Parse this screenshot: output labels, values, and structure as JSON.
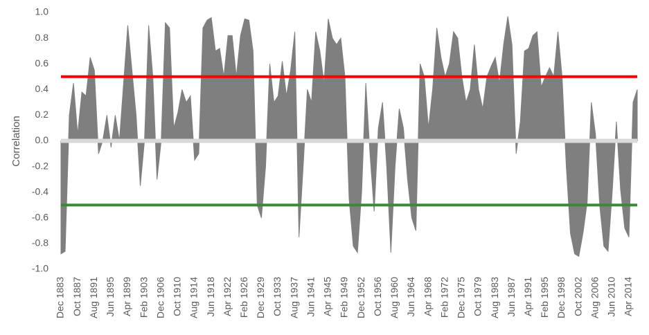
{
  "chart_data": {
    "type": "area",
    "y_label": "Correlation",
    "categories": [
      "Dec 1883",
      null,
      null,
      null,
      "Oct 1887",
      null,
      null,
      null,
      "Aug 1891",
      null,
      null,
      null,
      "Jun 1895",
      null,
      null,
      null,
      "Apr 1899",
      null,
      null,
      null,
      "Feb 1903",
      null,
      null,
      null,
      "Dec 1906",
      null,
      null,
      null,
      "Oct 1910",
      null,
      null,
      null,
      "Aug 1914",
      null,
      null,
      null,
      "Jun 1918",
      null,
      null,
      null,
      "Apr 1922",
      null,
      null,
      null,
      "Feb 1926",
      null,
      null,
      null,
      "Dec 1929",
      null,
      null,
      null,
      "Oct 1933",
      null,
      null,
      null,
      "Aug 1937",
      null,
      null,
      null,
      "Jun 1941",
      null,
      null,
      null,
      "Apr 1945",
      null,
      null,
      null,
      "Feb 1949",
      null,
      null,
      null,
      "Dec 1952",
      null,
      null,
      null,
      "Oct 1956",
      null,
      null,
      null,
      "Aug 1960",
      null,
      null,
      null,
      "Jun 1964",
      null,
      null,
      null,
      "Apr 1968",
      null,
      null,
      null,
      "Feb 1972",
      null,
      null,
      null,
      "Dec 1975",
      null,
      null,
      null,
      "Oct 1979",
      null,
      null,
      null,
      "Aug 1983",
      null,
      null,
      null,
      "Jun 1987",
      null,
      null,
      null,
      "Apr 1991",
      null,
      null,
      null,
      "Feb 1995",
      null,
      null,
      null,
      "Dec 1998",
      null,
      null,
      null,
      "Oct 2002",
      null,
      null,
      null,
      "Aug 2006",
      null,
      null,
      null,
      "Jun 2010",
      null,
      null,
      null,
      "Apr 2014",
      null,
      null
    ],
    "values": [
      -0.88,
      -0.86,
      0.2,
      0.45,
      0.05,
      0.38,
      0.35,
      0.65,
      0.55,
      -0.1,
      0.0,
      0.2,
      -0.05,
      0.2,
      0.0,
      0.45,
      0.9,
      0.55,
      0.2,
      -0.35,
      0.0,
      0.9,
      0.5,
      -0.3,
      0.0,
      0.92,
      0.88,
      0.1,
      0.22,
      0.4,
      0.3,
      0.35,
      -0.15,
      -0.1,
      0.88,
      0.94,
      0.96,
      0.7,
      0.72,
      0.5,
      0.82,
      0.82,
      0.5,
      0.82,
      0.95,
      0.94,
      0.7,
      -0.5,
      -0.6,
      -0.2,
      0.6,
      0.3,
      0.35,
      0.62,
      0.35,
      0.55,
      0.85,
      -0.75,
      -0.2,
      0.4,
      0.3,
      0.85,
      0.7,
      0.45,
      0.95,
      0.8,
      0.75,
      0.8,
      0.5,
      -0.45,
      -0.82,
      -0.87,
      -0.4,
      0.45,
      -0.1,
      -0.55,
      0.1,
      0.3,
      -0.2,
      -0.87,
      -0.2,
      0.25,
      0.1,
      -0.3,
      -0.6,
      -0.7,
      0.6,
      0.5,
      0.1,
      0.4,
      0.88,
      0.65,
      0.5,
      0.6,
      0.85,
      0.8,
      0.5,
      0.3,
      0.4,
      0.75,
      0.4,
      0.25,
      0.5,
      0.58,
      0.65,
      0.45,
      0.75,
      0.97,
      0.75,
      -0.1,
      0.15,
      0.7,
      0.72,
      0.82,
      0.85,
      0.42,
      0.5,
      0.57,
      0.5,
      0.85,
      0.5,
      -0.2,
      -0.72,
      -0.88,
      -0.9,
      -0.72,
      -0.48,
      0.3,
      0.05,
      -0.5,
      -0.82,
      -0.86,
      -0.4,
      0.15,
      -0.38,
      -0.68,
      -0.75,
      0.3,
      0.4
    ],
    "color": "#7f7f7f",
    "ylim": [
      -1,
      1
    ],
    "yticks": [
      {
        "value": -1,
        "label": "-1.0"
      },
      {
        "value": -0.8,
        "label": "-0.8"
      },
      {
        "value": -0.6,
        "label": "-0.6"
      },
      {
        "value": -0.4,
        "label": "-0.4"
      },
      {
        "value": -0.2,
        "label": "-0.2"
      },
      {
        "value": 0,
        "label": "0.0"
      },
      {
        "value": 0.2,
        "label": "0.2"
      },
      {
        "value": 0.4,
        "label": "0.4"
      },
      {
        "value": 0.6,
        "label": "0.6"
      },
      {
        "value": 0.8,
        "label": "0.8"
      },
      {
        "value": 1,
        "label": "1.0"
      }
    ],
    "reference_lines": [
      {
        "value": 0,
        "color": "#d9d9d9"
      },
      {
        "value": 0.5,
        "color": "#ff0000"
      },
      {
        "value": -0.5,
        "color": "#3a8a3a"
      }
    ],
    "grid": false
  }
}
